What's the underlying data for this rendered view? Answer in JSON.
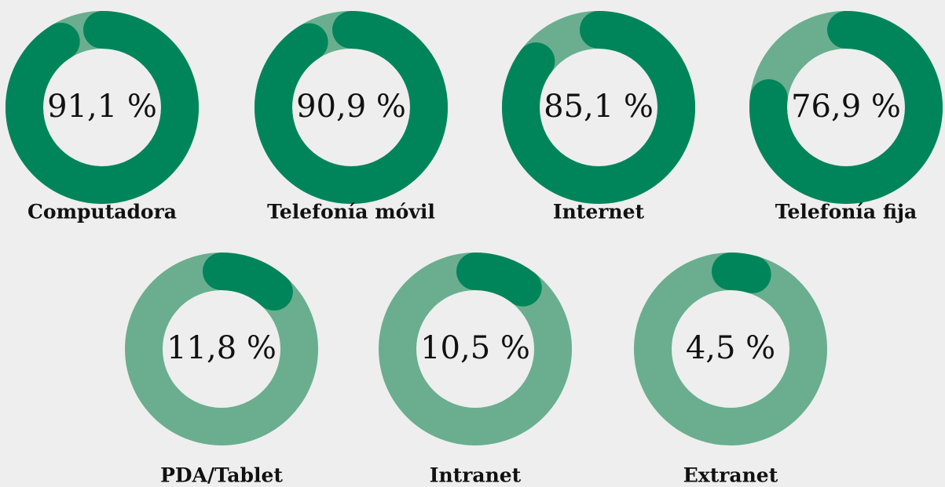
{
  "chart_data": {
    "type": "donut",
    "categories": [
      "Computadora",
      "Telefonía móvil",
      "Internet",
      "Telefonía fija",
      "PDA/Tablet",
      "Intranet",
      "Extranet"
    ],
    "values": [
      91.1,
      90.9,
      85.1,
      76.9,
      11.8,
      10.5,
      4.5
    ],
    "value_labels": [
      "91,1 %",
      "90,9 %",
      "85,1 %",
      "76,9 %",
      "11,8 %",
      "10,5 %",
      "4,5 %"
    ],
    "color": "#00855a",
    "track_color": "#6aae8f"
  }
}
